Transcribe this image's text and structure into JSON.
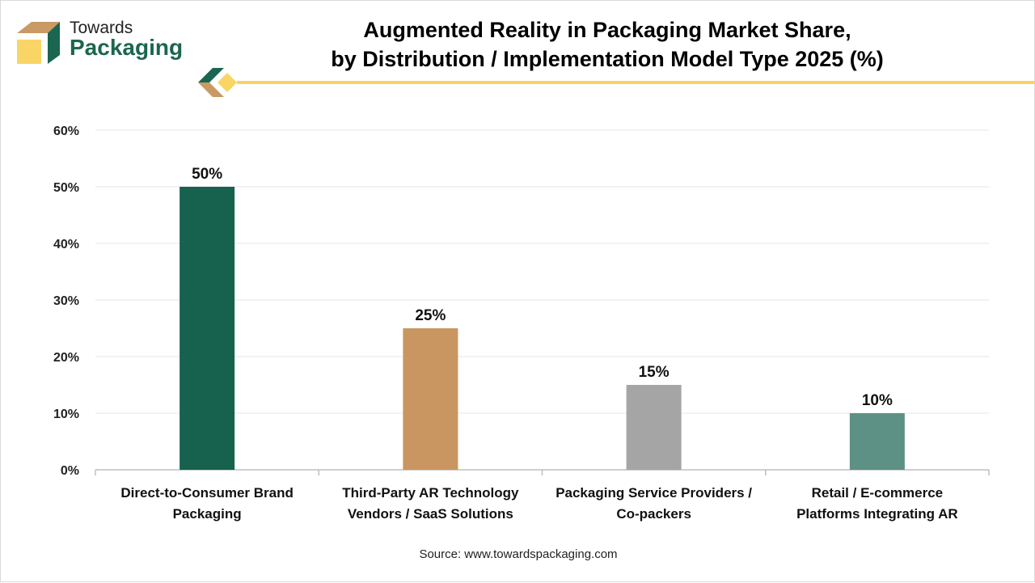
{
  "brand": {
    "line1": "Towards",
    "line2": "Packaging"
  },
  "title_line1": "Augmented Reality in Packaging Market Share,",
  "title_line2": "by Distribution / Implementation Model Type 2025 (%)",
  "source": "Source: www.towardspackaging.com",
  "chart_data": {
    "type": "bar",
    "title": "Augmented Reality in Packaging Market Share, by Distribution / Implementation Model Type 2025 (%)",
    "categories": [
      [
        "Direct-to-Consumer Brand",
        "Packaging"
      ],
      [
        "Third-Party AR Technology",
        "Vendors / SaaS Solutions"
      ],
      [
        "Packaging Service Providers /",
        "Co-packers"
      ],
      [
        "Retail / E-commerce",
        "Platforms Integrating AR"
      ]
    ],
    "values": [
      50,
      25,
      15,
      10
    ],
    "data_labels": [
      "50%",
      "25%",
      "15%",
      "10%"
    ],
    "colors": [
      "#17614f",
      "#c99560",
      "#a5a5a5",
      "#5e9186"
    ],
    "ylim": [
      0,
      60
    ],
    "yticks": [
      0,
      10,
      20,
      30,
      40,
      50,
      60
    ],
    "ytick_labels": [
      "0%",
      "10%",
      "20%",
      "30%",
      "40%",
      "50%",
      "60%"
    ],
    "grid": true,
    "xlabel": "",
    "ylabel": ""
  }
}
